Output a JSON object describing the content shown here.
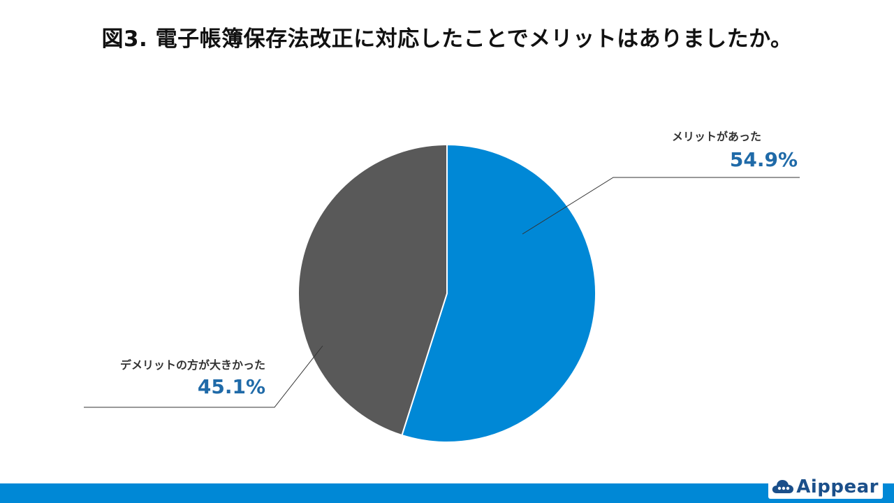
{
  "title": "図3. 電子帳簿保存法改正に対応したことでメリットはありましたか。",
  "logo": {
    "text": "Aippear",
    "icon": "cloud-icon"
  },
  "colors": {
    "series_blue": "#0088d6",
    "series_gray": "#595959",
    "label_pct": "#1f6aa8",
    "footer": "#0088d6"
  },
  "chart_data": {
    "type": "pie",
    "title": "図3. 電子帳簿保存法改正に対応したことでメリットはありましたか。",
    "start_angle_deg": 0,
    "direction": "clockwise",
    "slices": [
      {
        "label": "メリットがあった",
        "value": 54.9,
        "display": "54.9%",
        "color": "#0088d6"
      },
      {
        "label": "デメリットの方が大きかった",
        "value": 45.1,
        "display": "45.1%",
        "color": "#595959"
      }
    ]
  }
}
